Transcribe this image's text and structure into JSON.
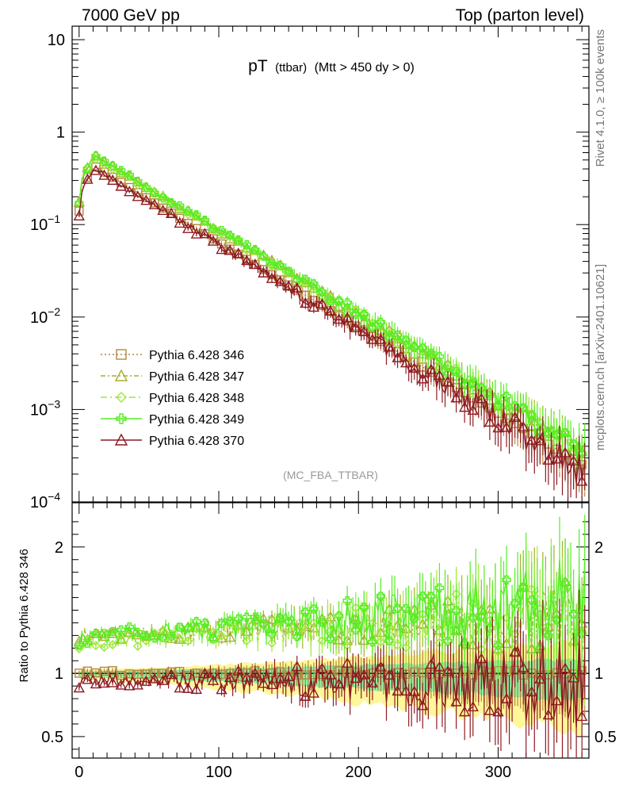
{
  "chart_data": {
    "type": "line",
    "header_left": "7000 GeV pp",
    "header_right": "Top (parton level)",
    "title_main": "pT",
    "title_sub": "(ttbar)",
    "title_cut": "(Mtt > 450 dy > 0)",
    "analysis_tag": "(MC_FBA_TTBAR)",
    "side_label_top": "Rivet 4.1.0, ≥ 100k events",
    "side_label_bottom": "mcplots.cern.ch [arXiv:2401.10621]",
    "ratio_ylabel": "Ratio to Pythia 6.428 346",
    "xlim": [
      -5,
      365
    ],
    "main_ylim": [
      0.0001,
      14
    ],
    "main_yscale": "log",
    "ratio_ylim": [
      0.33,
      2.35
    ],
    "x_ticks": [
      0,
      100,
      200,
      300
    ],
    "x_tick_labels": [
      "0",
      "100",
      "200",
      "300"
    ],
    "main_y_ticks": [
      {
        "value": 10,
        "base": "10",
        "exp": ""
      },
      {
        "value": 1,
        "base": "1",
        "exp": ""
      },
      {
        "value": 0.1,
        "base": "10",
        "exp": "−1"
      },
      {
        "value": 0.01,
        "base": "10",
        "exp": "−2"
      },
      {
        "value": 0.001,
        "base": "10",
        "exp": "−3"
      },
      {
        "value": 0.0001,
        "base": "10",
        "exp": "−4"
      }
    ],
    "ratio_y_ticks": [
      {
        "value": 2,
        "label": "2"
      },
      {
        "value": 1,
        "label": "1"
      },
      {
        "value": 0.5,
        "label": "0.5"
      }
    ],
    "model": {
      "peak_x": 12,
      "peak_value": 0.42,
      "slope": 0.0213,
      "x_start": 0,
      "x_end": 362
    },
    "series": [
      {
        "name": "Pythia 6.428 346",
        "color": "#b5873f",
        "marker": "square",
        "dash": "2,3",
        "scale": 1.0,
        "ratio_bias": 0.0,
        "ratio_slope": 0.0,
        "ratio_noise": 0.04
      },
      {
        "name": "Pythia 6.428 347",
        "color": "#a8ae2e",
        "marker": "triangle",
        "dash": "6,3,2,3",
        "scale": 1.3,
        "ratio_bias": 0.3,
        "ratio_slope": 0.0004,
        "ratio_noise": 0.12
      },
      {
        "name": "Pythia 6.428 348",
        "color": "#9ee83a",
        "marker": "diamond",
        "dash": "8,4,2,4",
        "scale": 1.25,
        "ratio_bias": 0.25,
        "ratio_slope": 0.0006,
        "ratio_noise": 0.14
      },
      {
        "name": "Pythia 6.428 349",
        "color": "#55ee22",
        "marker": "cross",
        "dash": "",
        "scale": 1.28,
        "ratio_bias": 0.28,
        "ratio_slope": 0.0007,
        "ratio_noise": 0.15
      },
      {
        "name": "Pythia 6.428 370",
        "color": "#8e1a22",
        "marker": "triangle",
        "dash": "",
        "scale": 0.97,
        "ratio_bias": -0.06,
        "ratio_slope": 0.0,
        "ratio_noise": 0.14
      }
    ],
    "bands": [
      {
        "name": "yellow-band",
        "color": "#fff799",
        "width_start": 0.05,
        "width_end": 0.45
      },
      {
        "name": "green-band",
        "color": "#90f0a0",
        "width_start": 0.03,
        "width_end": 0.22
      }
    ]
  }
}
